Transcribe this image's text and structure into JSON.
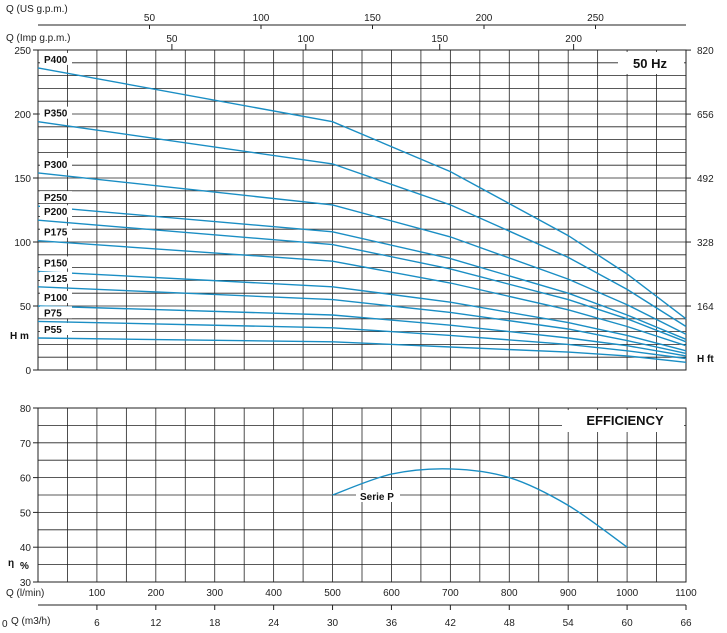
{
  "header": {
    "q_us_label": "Q (US g.p.m.)",
    "q_imp_label": "Q (Imp g.p.m.)",
    "freq_label": "50 Hz",
    "h_m_label": "H m",
    "h_ft_label": "H ft",
    "efficiency_label": "EFFICIENCY",
    "eta_label": "η",
    "pct_label": "%",
    "q_lmin_label": "Q (l/min)",
    "q_m3h_label": "Q (m3/h)",
    "zero_label": "0"
  },
  "chart_data": [
    {
      "type": "line",
      "title": "50 Hz",
      "xlabel": "Q (l/min)",
      "ylabel": "H m",
      "xlim": [
        0,
        1100
      ],
      "ylim": [
        0,
        250
      ],
      "x_ticks": [
        100,
        200,
        300,
        400,
        500,
        600,
        700,
        800,
        900,
        1000,
        1100
      ],
      "y_ticks": [
        0,
        50,
        100,
        150,
        200,
        250
      ],
      "right_axis": {
        "label": "H ft",
        "ticks": [
          164,
          328,
          492,
          656,
          820
        ]
      },
      "top_axis_us": {
        "label": "Q (US g.p.m.)",
        "ticks": [
          50,
          100,
          150,
          200,
          250
        ]
      },
      "top_axis_imp": {
        "label": "Q (Imp g.p.m.)",
        "ticks": [
          50,
          100,
          150,
          200
        ]
      },
      "grid": true,
      "x": [
        0,
        500,
        700,
        900,
        1000,
        1100
      ],
      "series": [
        {
          "name": "P400",
          "values": [
            236,
            194,
            155,
            105,
            75,
            40
          ]
        },
        {
          "name": "P350",
          "values": [
            194,
            161,
            129,
            88,
            63,
            34
          ]
        },
        {
          "name": "P300",
          "values": [
            154,
            129,
            104,
            71,
            51,
            28
          ]
        },
        {
          "name": "P250",
          "values": [
            128,
            108,
            87,
            60,
            43,
            24
          ]
        },
        {
          "name": "P200",
          "values": [
            117,
            98,
            79,
            55,
            40,
            22
          ]
        },
        {
          "name": "P175",
          "values": [
            101,
            85,
            68,
            47,
            34,
            19
          ]
        },
        {
          "name": "P150",
          "values": [
            77,
            65,
            53,
            37,
            27,
            15
          ]
        },
        {
          "name": "P125",
          "values": [
            65,
            55,
            45,
            32,
            23,
            13
          ]
        },
        {
          "name": "P100",
          "values": [
            50,
            43,
            35,
            25,
            19,
            11
          ]
        },
        {
          "name": "P75",
          "values": [
            38,
            33,
            27,
            20,
            15,
            9
          ]
        },
        {
          "name": "P55",
          "values": [
            25,
            22,
            18,
            14,
            11,
            6
          ]
        }
      ]
    },
    {
      "type": "line",
      "title": "EFFICIENCY",
      "xlabel": "Q (l/min)",
      "ylabel": "η %",
      "xlim": [
        0,
        1100
      ],
      "ylim": [
        30,
        80
      ],
      "x_ticks": [
        100,
        200,
        300,
        400,
        500,
        600,
        700,
        800,
        900,
        1000,
        1100
      ],
      "y_ticks": [
        30,
        40,
        50,
        60,
        70,
        80
      ],
      "second_x_axis": {
        "label": "Q (m3/h)",
        "ticks": [
          6,
          12,
          18,
          24,
          30,
          36,
          42,
          48,
          54,
          60,
          66
        ]
      },
      "grid": true,
      "x": [
        500,
        600,
        700,
        800,
        900,
        1000
      ],
      "series": [
        {
          "name": "Serie P",
          "values": [
            55,
            61,
            62.5,
            60,
            52,
            40
          ]
        }
      ]
    }
  ],
  "colors": {
    "curve": "#1a8ec4",
    "grid": "#222222"
  }
}
